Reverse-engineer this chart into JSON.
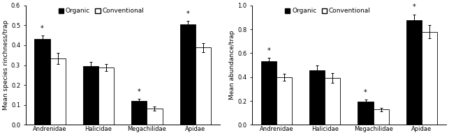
{
  "chart_A": {
    "ylabel": "Mean species rinchness/trap",
    "ylim": [
      0,
      0.6
    ],
    "yticks": [
      0,
      0.1,
      0.2,
      0.3,
      0.4,
      0.5,
      0.6
    ],
    "categories": [
      "Andrenidae",
      "Halicidae",
      "Megachilidae",
      "Apidae"
    ],
    "organic_values": [
      0.43,
      0.295,
      0.122,
      0.505
    ],
    "conventional_values": [
      0.333,
      0.287,
      0.083,
      0.388
    ],
    "organic_errors": [
      0.018,
      0.022,
      0.01,
      0.018
    ],
    "conventional_errors": [
      0.028,
      0.018,
      0.01,
      0.022
    ],
    "organic_sig": [
      true,
      false,
      true,
      true
    ],
    "conventional_sig": [
      false,
      false,
      false,
      false
    ]
  },
  "chart_B": {
    "ylabel": "Mean abundance/trap",
    "ylim": [
      0,
      1.0
    ],
    "yticks": [
      0,
      0.2,
      0.4,
      0.6,
      0.8,
      1.0
    ],
    "categories": [
      "Andrenidae",
      "Halicidae",
      "Megachilidae",
      "Apidae"
    ],
    "organic_values": [
      0.53,
      0.455,
      0.192,
      0.875
    ],
    "conventional_values": [
      0.398,
      0.393,
      0.128,
      0.778
    ],
    "organic_errors": [
      0.03,
      0.045,
      0.022,
      0.05
    ],
    "conventional_errors": [
      0.03,
      0.04,
      0.015,
      0.055
    ],
    "organic_sig": [
      true,
      false,
      true,
      true
    ],
    "conventional_sig": [
      false,
      false,
      false,
      false
    ]
  },
  "bar_width": 0.32,
  "organic_color": "#000000",
  "conventional_color": "#ffffff",
  "conventional_edge": "#000000",
  "legend_organic": "Organic",
  "legend_conventional": "Conventional",
  "font_size": 6.5,
  "tick_font_size": 6.0,
  "label_font_size": 6.5,
  "star_font_size": 7.0,
  "bg_color": "#ffffff"
}
